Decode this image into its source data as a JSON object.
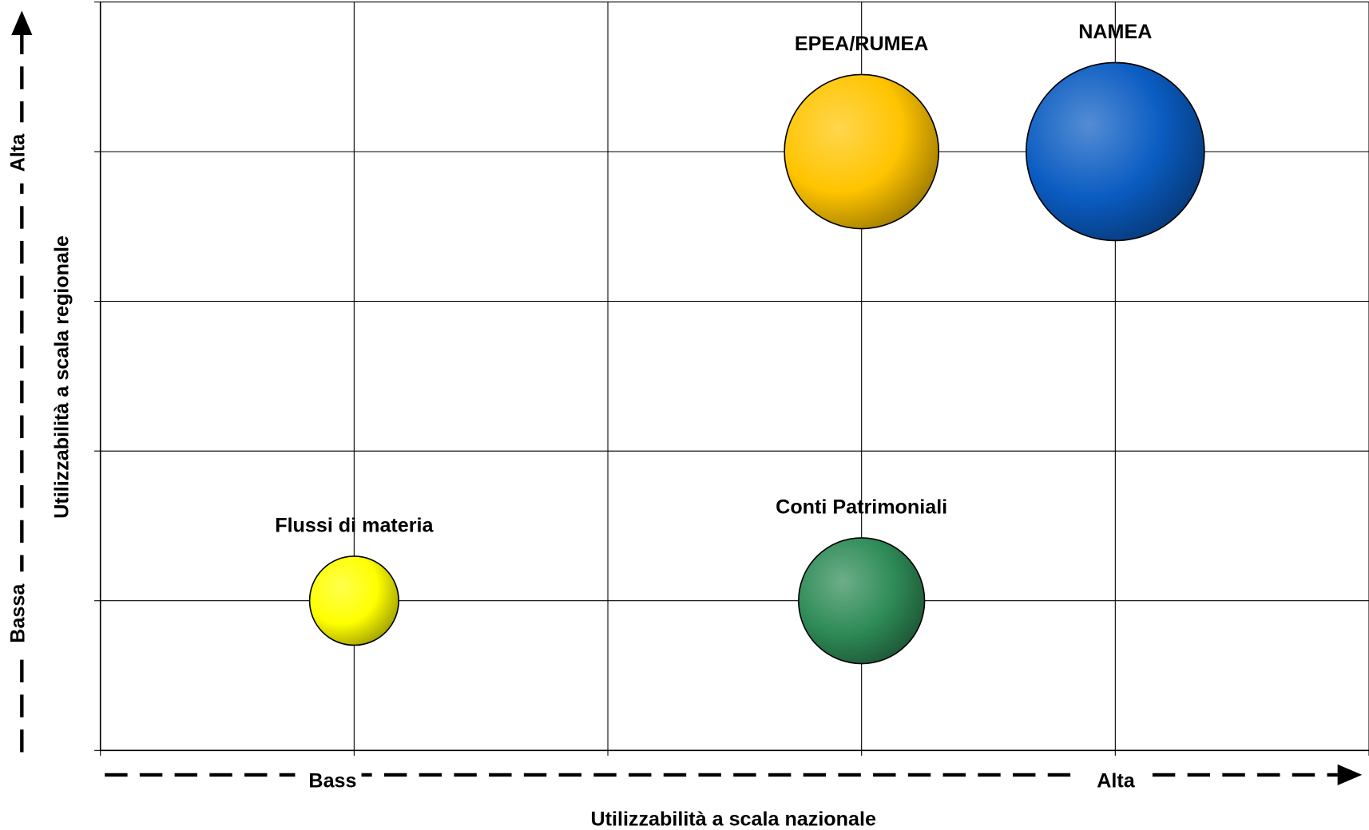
{
  "chart_data": {
    "type": "bubble",
    "labels": [
      "Flussi di materia",
      "Conti Patrimoniali",
      "EPEA/RUMEA",
      "NAMEA"
    ],
    "x": [
      1,
      3,
      3,
      4
    ],
    "values": [
      1,
      1,
      4,
      4
    ],
    "sizes": [
      1,
      2,
      3,
      4
    ],
    "colors": [
      "#ffff00",
      "#2e8b57",
      "#ffc400",
      "#0a5cc2"
    ],
    "xlim": [
      0,
      5
    ],
    "xticks": [
      0,
      1,
      2,
      3,
      4,
      5
    ],
    "ylim": [
      0,
      5
    ],
    "yticks": [
      0,
      1,
      2,
      3,
      4,
      5
    ],
    "grid": true,
    "x_axis_label": "Utilizzabilità a scala nazionale",
    "y_axis_label": "Utilizzabilità a scala regionale",
    "x_low_label": "Bass",
    "x_high_label": "Alta",
    "y_low_label": "Bassa",
    "y_high_label": "Alta"
  }
}
